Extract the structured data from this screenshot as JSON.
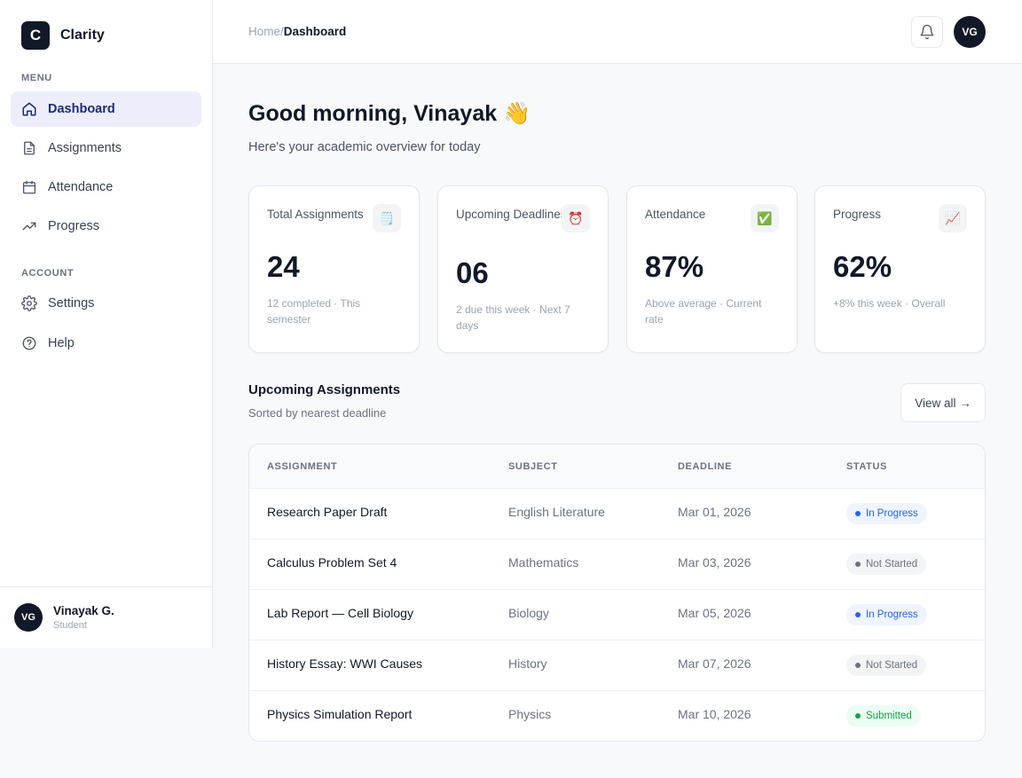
{
  "brand": {
    "logo_letter": "C",
    "name": "Clarity"
  },
  "sidebar": {
    "menu_label": "MENU",
    "account_label": "ACCOUNT",
    "items": [
      {
        "label": "Dashboard",
        "icon": "home-icon"
      },
      {
        "label": "Assignments",
        "icon": "document-icon"
      },
      {
        "label": "Attendance",
        "icon": "calendar-icon"
      },
      {
        "label": "Progress",
        "icon": "trending-up-icon"
      },
      {
        "label": "Settings",
        "icon": "gear-icon"
      },
      {
        "label": "Help",
        "icon": "help-circle-icon"
      }
    ],
    "user": {
      "initials": "VG",
      "name": "Vinayak G.",
      "role": "Student"
    }
  },
  "header": {
    "breadcrumb_home": "Home",
    "breadcrumb_sep": "/",
    "breadcrumb_current": "Dashboard",
    "avatar_initials": "VG"
  },
  "main": {
    "greeting": "Good morning, Vinayak 👋",
    "subtitle": "Here's your academic overview for today",
    "stats": [
      {
        "title": "Total Assignments",
        "icon": "🗒️",
        "value": "24",
        "note": "12 completed · This semester"
      },
      {
        "title": "Upcoming Deadlines",
        "icon": "⏰",
        "value": "06",
        "note": "2 due this week · Next 7 days"
      },
      {
        "title": "Attendance",
        "icon": "✅",
        "value": "87%",
        "note": "Above average · Current rate"
      },
      {
        "title": "Progress",
        "icon": "📈",
        "value": "62%",
        "note": "+8% this week · Overall"
      }
    ],
    "section_title": "Upcoming Assignments",
    "section_subtitle": "Sorted by nearest deadline",
    "view_all": "View all →",
    "table": {
      "columns": [
        "ASSIGNMENT",
        "SUBJECT",
        "DEADLINE",
        "STATUS"
      ],
      "rows": [
        {
          "assignment": "Research Paper Draft",
          "subject": "English Literature",
          "deadline": "Mar 01, 2026",
          "status": "In Progress"
        },
        {
          "assignment": "Calculus Problem Set 4",
          "subject": "Mathematics",
          "deadline": "Mar 03, 2026",
          "status": "Not Started"
        },
        {
          "assignment": "Lab Report — Cell Biology",
          "subject": "Biology",
          "deadline": "Mar 05, 2026",
          "status": "In Progress"
        },
        {
          "assignment": "History Essay: WWI Causes",
          "subject": "History",
          "deadline": "Mar 07, 2026",
          "status": "Not Started"
        },
        {
          "assignment": "Physics Simulation Report",
          "subject": "Physics",
          "deadline": "Mar 10, 2026",
          "status": "Submitted"
        }
      ]
    },
    "status_colors": {
      "In Progress": {
        "fg": "#2563eb",
        "bg": "#eff4ff"
      },
      "Not Started": {
        "fg": "#6b7280",
        "bg": "#f3f4f6"
      },
      "Submitted": {
        "fg": "#16a34a",
        "bg": "#ecfdf3"
      }
    }
  }
}
